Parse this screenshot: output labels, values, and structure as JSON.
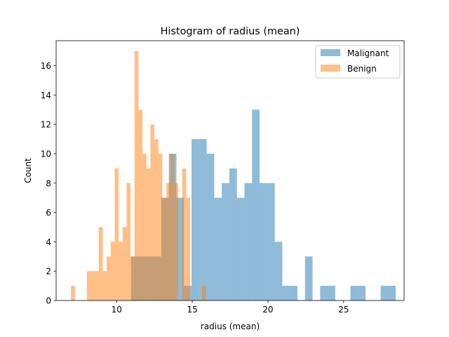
{
  "chart_data": {
    "type": "bar",
    "title": "Histogram of radius (mean)",
    "xlabel": "radius (mean)",
    "ylabel": "Count",
    "xlim": [
      6.0,
      29.0
    ],
    "ylim": [
      0,
      17.7
    ],
    "xticks": [
      10,
      15,
      20,
      25
    ],
    "yticks": [
      0,
      2,
      4,
      6,
      8,
      10,
      12,
      14,
      16
    ],
    "grid": false,
    "legend_position": "top-right",
    "series": [
      {
        "name": "Malignant",
        "color": "#1f77b4",
        "opacity": 0.5,
        "bin_start": 10.95,
        "bin_width": 0.5,
        "counts": [
          3,
          3,
          3,
          3,
          7,
          10,
          7,
          1,
          11,
          11,
          10,
          7,
          8,
          9,
          7,
          8,
          13,
          8,
          8,
          4,
          1,
          1,
          0,
          3,
          0,
          1,
          1,
          0,
          0,
          1,
          1,
          0,
          0,
          1,
          1
        ]
      },
      {
        "name": "Benign",
        "color": "#ff7f0e",
        "opacity": 0.5,
        "bin_start": 6.98,
        "bin_width": 0.2627,
        "counts": [
          1,
          0,
          0,
          0,
          2,
          2,
          2,
          5,
          2,
          3,
          4,
          9,
          4,
          5,
          8,
          3,
          17,
          13,
          10,
          9,
          12,
          11,
          10,
          7,
          8,
          10,
          8,
          0,
          9,
          7,
          0,
          0,
          0,
          1
        ]
      }
    ]
  }
}
